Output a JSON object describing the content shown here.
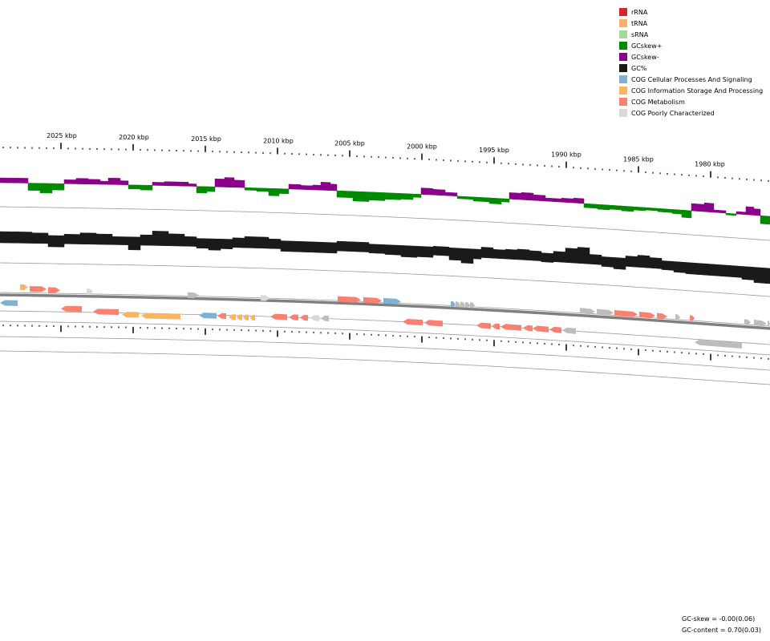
{
  "legend": [
    {
      "label": "rRNA",
      "color": "#d62728",
      "icon": "legend-swatch"
    },
    {
      "label": "tRNA",
      "color": "#fdae6b",
      "icon": "legend-swatch"
    },
    {
      "label": "sRNA",
      "color": "#a1d99b",
      "icon": "legend-swatch"
    },
    {
      "label": "GCskew+",
      "color": "#008a00",
      "icon": "legend-swatch"
    },
    {
      "label": "GCskew-",
      "color": "#8b008b",
      "icon": "legend-swatch"
    },
    {
      "label": "GC%",
      "color": "#1a1a1a",
      "icon": "legend-swatch"
    },
    {
      "label": "COG Cellular Processes And Signaling",
      "color": "#7fb1d3",
      "icon": "legend-swatch"
    },
    {
      "label": "COG Information Storage And Processing",
      "color": "#fdb462",
      "icon": "legend-swatch"
    },
    {
      "label": "COG Metabolism",
      "color": "#fa8072",
      "icon": "legend-swatch"
    },
    {
      "label": "COG Poorly Characterized",
      "color": "#d9d9d9",
      "icon": "legend-swatch"
    }
  ],
  "scale_labels": [
    "2025 kbp",
    "2020 kbp",
    "2015 kbp",
    "2010 kbp",
    "2005 kbp",
    "2000 kbp",
    "1995 kbp",
    "1990 kbp",
    "1985 kbp",
    "1980 kbp"
  ],
  "stats": {
    "gc_skew": "GC-skew = -0.00(0.06)",
    "gc_content": "GC-content = 0.70(0.03)"
  },
  "colors": {
    "metabolism": "#fa8072",
    "info": "#fdb462",
    "cellular": "#7fb1d3",
    "poorly": "#d9d9d9",
    "grey_gene": "#bdbdbd",
    "skew_pos": "#008a00",
    "skew_neg": "#8b008b",
    "gc": "#1a1a1a",
    "backbone": "#808080"
  }
}
